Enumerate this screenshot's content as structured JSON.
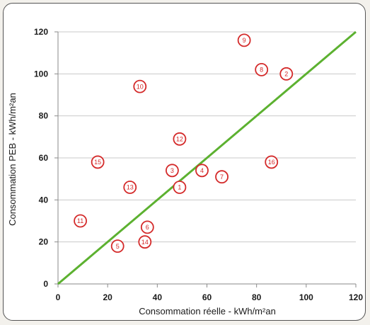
{
  "chart_data": {
    "type": "scatter",
    "title": "",
    "xlabel": "Consommation réelle - kWh/m²an",
    "ylabel": "Consommation PEB - kWh/m²an",
    "xlim": [
      0,
      120
    ],
    "ylim": [
      0,
      120
    ],
    "x_ticks": [
      0,
      20,
      40,
      60,
      80,
      100,
      120
    ],
    "y_ticks": [
      0,
      20,
      40,
      60,
      80,
      100,
      120
    ],
    "grid": "horizontal",
    "legend": "none",
    "series": [
      {
        "marker": "circle",
        "color": "#d42a2a",
        "points": [
          {
            "label": "1",
            "x": 49,
            "y": 46
          },
          {
            "label": "2",
            "x": 92,
            "y": 100
          },
          {
            "label": "3",
            "x": 46,
            "y": 54
          },
          {
            "label": "4",
            "x": 58,
            "y": 54
          },
          {
            "label": "5",
            "x": 24,
            "y": 18
          },
          {
            "label": "6",
            "x": 36,
            "y": 27
          },
          {
            "label": "7",
            "x": 66,
            "y": 51
          },
          {
            "label": "8",
            "x": 82,
            "y": 102
          },
          {
            "label": "9",
            "x": 75,
            "y": 116
          },
          {
            "label": "10",
            "x": 33,
            "y": 94
          },
          {
            "label": "11",
            "x": 9,
            "y": 30
          },
          {
            "label": "12",
            "x": 49,
            "y": 69
          },
          {
            "label": "13",
            "x": 29,
            "y": 46
          },
          {
            "label": "14",
            "x": 35,
            "y": 20
          },
          {
            "label": "15",
            "x": 16,
            "y": 58
          },
          {
            "label": "16",
            "x": 86,
            "y": 58
          }
        ]
      }
    ],
    "reference_line": {
      "from": [
        0,
        0
      ],
      "to": [
        120,
        120
      ],
      "color": "#5cb130"
    }
  }
}
